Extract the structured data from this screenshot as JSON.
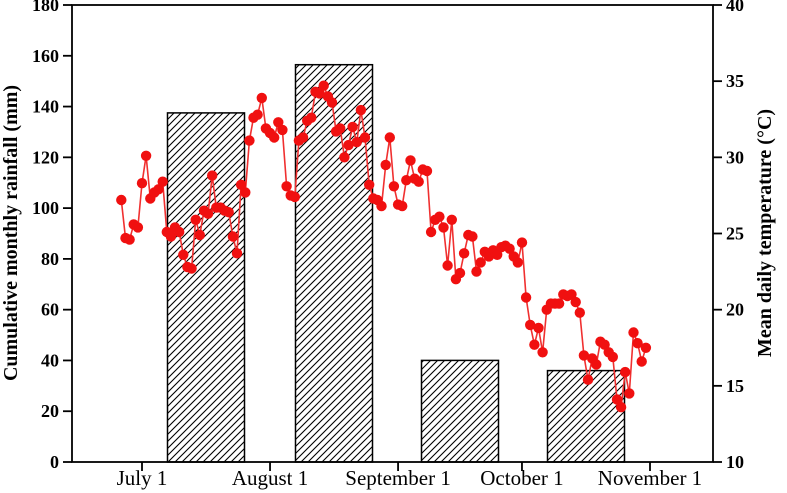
{
  "chart_data": {
    "type": "combo",
    "title": "",
    "ylabel_left": "Cumulative monthly rainfall (mm)",
    "ylabel_right": "Mean daily temperature (°C)",
    "y_left": {
      "min": 0,
      "max": 180,
      "step": 20
    },
    "y_right": {
      "min": 10,
      "max": 40,
      "step": 5
    },
    "x_tick_labels": [
      "July 1",
      "August 1",
      "September 1",
      "October 1",
      "November 1"
    ],
    "x_tick_day_offsets": [
      0,
      31,
      62,
      92,
      123
    ],
    "grid": false,
    "legend": "none",
    "colors": {
      "temperature_point": "#f01010",
      "temperature_line": "#f03030",
      "bar_fill": "#ffffff",
      "bar_hatch": "#000000",
      "axis": "#000000"
    },
    "series": [
      {
        "name": "Cumulative monthly rainfall",
        "type": "bar",
        "unit": "mm",
        "categories": [
          "July",
          "August",
          "September",
          "October"
        ],
        "values": [
          137.5,
          156.5,
          40,
          36
        ]
      },
      {
        "name": "Mean daily temperature",
        "type": "scatter-line",
        "unit": "°C",
        "dates": [
          "Jun 26",
          "Jun 27",
          "Jun 28",
          "Jun 29",
          "Jun 30",
          "Jul 1",
          "Jul 2",
          "Jul 3",
          "Jul 4",
          "Jul 5",
          "Jul 6",
          "Jul 7",
          "Jul 8",
          "Jul 9",
          "Jul 10",
          "Jul 11",
          "Jul 12",
          "Jul 13",
          "Jul 14",
          "Jul 15",
          "Jul 16",
          "Jul 17",
          "Jul 18",
          "Jul 19",
          "Jul 20",
          "Jul 21",
          "Jul 22",
          "Jul 23",
          "Jul 24",
          "Jul 25",
          "Jul 26",
          "Jul 27",
          "Jul 28",
          "Jul 29",
          "Jul 30",
          "Jul 31",
          "Aug 1",
          "Aug 2",
          "Aug 3",
          "Aug 4",
          "Aug 5",
          "Aug 6",
          "Aug 7",
          "Aug 8",
          "Aug 9",
          "Aug 10",
          "Aug 11",
          "Aug 12",
          "Aug 13",
          "Aug 14",
          "Aug 15",
          "Aug 16",
          "Aug 17",
          "Aug 18",
          "Aug 19",
          "Aug 20",
          "Aug 21",
          "Aug 22",
          "Aug 23",
          "Aug 24",
          "Aug 25",
          "Aug 26",
          "Aug 27",
          "Aug 28",
          "Aug 29",
          "Aug 30",
          "Aug 31",
          "Sep 1",
          "Sep 2",
          "Sep 3",
          "Sep 4",
          "Sep 5",
          "Sep 6",
          "Sep 7",
          "Sep 8",
          "Sep 9",
          "Sep 10",
          "Sep 11",
          "Sep 12",
          "Sep 13",
          "Sep 14",
          "Sep 15",
          "Sep 16",
          "Sep 17",
          "Sep 18",
          "Sep 19",
          "Sep 20",
          "Sep 21",
          "Sep 22",
          "Sep 23",
          "Sep 24",
          "Sep 25",
          "Sep 26",
          "Sep 27",
          "Sep 28",
          "Sep 29",
          "Sep 30",
          "Oct 1",
          "Oct 2",
          "Oct 3",
          "Oct 4",
          "Oct 5",
          "Oct 6",
          "Oct 7",
          "Oct 8",
          "Oct 9",
          "Oct 10",
          "Oct 11",
          "Oct 12",
          "Oct 13",
          "Oct 14",
          "Oct 15",
          "Oct 16",
          "Oct 17",
          "Oct 18",
          "Oct 19",
          "Oct 20",
          "Oct 21",
          "Oct 22",
          "Oct 23",
          "Oct 24",
          "Oct 25",
          "Oct 26",
          "Oct 27",
          "Oct 28",
          "Oct 29",
          "Oct 30",
          "Oct 31"
        ],
        "values": [
          27.2,
          24.7,
          24.6,
          25.6,
          25.4,
          28.3,
          30.1,
          27.3,
          27.7,
          27.9,
          28.4,
          25.1,
          24.8,
          25.4,
          25.1,
          23.6,
          22.8,
          22.7,
          25.9,
          24.9,
          26.5,
          26.3,
          28.8,
          26.7,
          26.7,
          26.5,
          26.4,
          24.8,
          23.7,
          28.2,
          27.7,
          31.1,
          32.6,
          32.8,
          33.9,
          31.9,
          31.6,
          31.3,
          32.3,
          31.8,
          28.1,
          27.5,
          27.4,
          31.1,
          31.3,
          32.4,
          32.6,
          34.3,
          34.2,
          34.7,
          34.0,
          33.6,
          31.7,
          31.9,
          30.0,
          30.8,
          32.0,
          31.0,
          33.1,
          31.3,
          28.2,
          27.3,
          27.2,
          26.8,
          29.5,
          31.3,
          28.1,
          26.9,
          26.8,
          28.5,
          29.8,
          28.6,
          28.4,
          29.2,
          29.1,
          25.1,
          25.9,
          26.1,
          25.4,
          22.9,
          25.9,
          22.0,
          22.4,
          23.7,
          24.9,
          24.8,
          22.5,
          23.1,
          23.8,
          23.5,
          23.9,
          23.6,
          24.1,
          24.2,
          24.0,
          23.5,
          23.1,
          24.4,
          20.8,
          19.0,
          17.7,
          18.8,
          17.2,
          20.0,
          20.4,
          20.4,
          20.4,
          21.0,
          20.9,
          21.0,
          20.5,
          19.8,
          17.0,
          15.4,
          16.8,
          16.4,
          17.9,
          17.7,
          17.2,
          16.9,
          14.1,
          13.6,
          15.9,
          14.5,
          18.5,
          17.8,
          16.6,
          17.5
        ]
      }
    ]
  }
}
